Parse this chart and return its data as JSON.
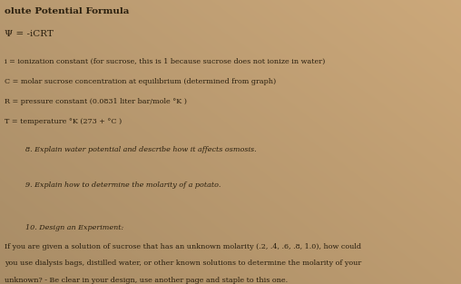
{
  "background_color_tl": "#c8a882",
  "background_color_tr": "#d4b896",
  "background_color_bl": "#b8956e",
  "background_color_br": "#c8a882",
  "title": "olute Potential Formula",
  "title_fontsize": 7.5,
  "title_bold": true,
  "formula": "Ψ = -iCRT",
  "formula_fontsize": 8.5,
  "lines": [
    "i = ionization constant (for sucrose, this is 1 because sucrose does not ionize in water)",
    "C = molar sucrose concentration at equilibrium (determined from graph)",
    "R = pressure constant (0.0831 liter bar/mole °K )",
    "T = temperature °K (273 + °C )"
  ],
  "q8": "8. Explain water potential and describe how it affects osmosis.",
  "q9": "9. Explain how to determine the molarity of a potato.",
  "q10_header": "10. Design an Experiment:",
  "q10_line1": "If you are given a solution of sucrose that has an unknown molarity (.2, .4, .6, .8, 1.0), how could",
  "q10_line2": "you use dialysis bags, distilled water, or other known solutions to determine the molarity of your",
  "q10_line3": "unknown? - Be clear in your design, use another page and staple to this one.",
  "text_color": "#2a1f0e",
  "font_family": "DejaVu Serif",
  "fontsize_main": 5.8,
  "fontsize_formula": 7.5
}
